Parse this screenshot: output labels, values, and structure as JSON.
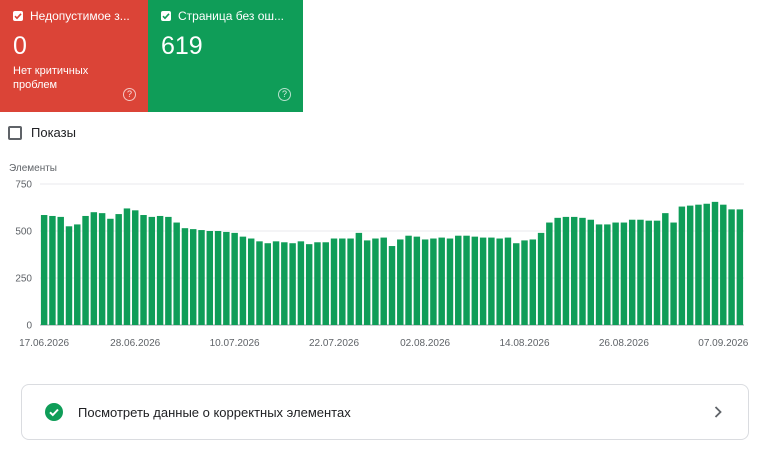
{
  "cards": [
    {
      "title": "Недопустимое з...",
      "value": "0",
      "subtitle": "Нет критичных проблем",
      "color": "#db4437",
      "checked": true,
      "help_icon": "question-circle-icon"
    },
    {
      "title": "Страница без ош...",
      "value": "619",
      "color": "#0f9d58",
      "checked": true,
      "help_icon": "question-circle-icon"
    }
  ],
  "impressions_label": "Показы",
  "chart_data": {
    "type": "bar",
    "ylabel": "Элементы",
    "ylim": [
      0,
      750
    ],
    "yticks": [
      0,
      250,
      500,
      750
    ],
    "xtick_labels": [
      "17.06.2026",
      "28.06.2026",
      "10.07.2026",
      "22.07.2026",
      "02.08.2026",
      "14.08.2026",
      "26.08.2026",
      "07.09.2026"
    ],
    "xtick_days_from_start": [
      0,
      11,
      23,
      35,
      46,
      58,
      70,
      82
    ],
    "start_date": "17.06.2026",
    "color": "#0f9d58",
    "grid": true,
    "values": [
      585,
      580,
      575,
      525,
      535,
      580,
      600,
      595,
      565,
      590,
      620,
      610,
      585,
      575,
      580,
      575,
      545,
      515,
      510,
      505,
      500,
      500,
      495,
      490,
      470,
      460,
      445,
      435,
      445,
      440,
      435,
      445,
      430,
      440,
      440,
      460,
      460,
      460,
      490,
      450,
      460,
      465,
      420,
      455,
      475,
      470,
      455,
      460,
      465,
      460,
      475,
      475,
      470,
      465,
      465,
      460,
      465,
      435,
      450,
      455,
      490,
      545,
      570,
      575,
      575,
      570,
      560,
      535,
      535,
      545,
      545,
      560,
      560,
      555,
      555,
      595,
      545,
      630,
      635,
      640,
      645,
      655,
      640,
      615,
      615
    ]
  },
  "footer_link": {
    "label": "Посмотреть данные о корректных элементах",
    "icon": "check-circle-icon",
    "chevron": "chevron-right-icon"
  }
}
